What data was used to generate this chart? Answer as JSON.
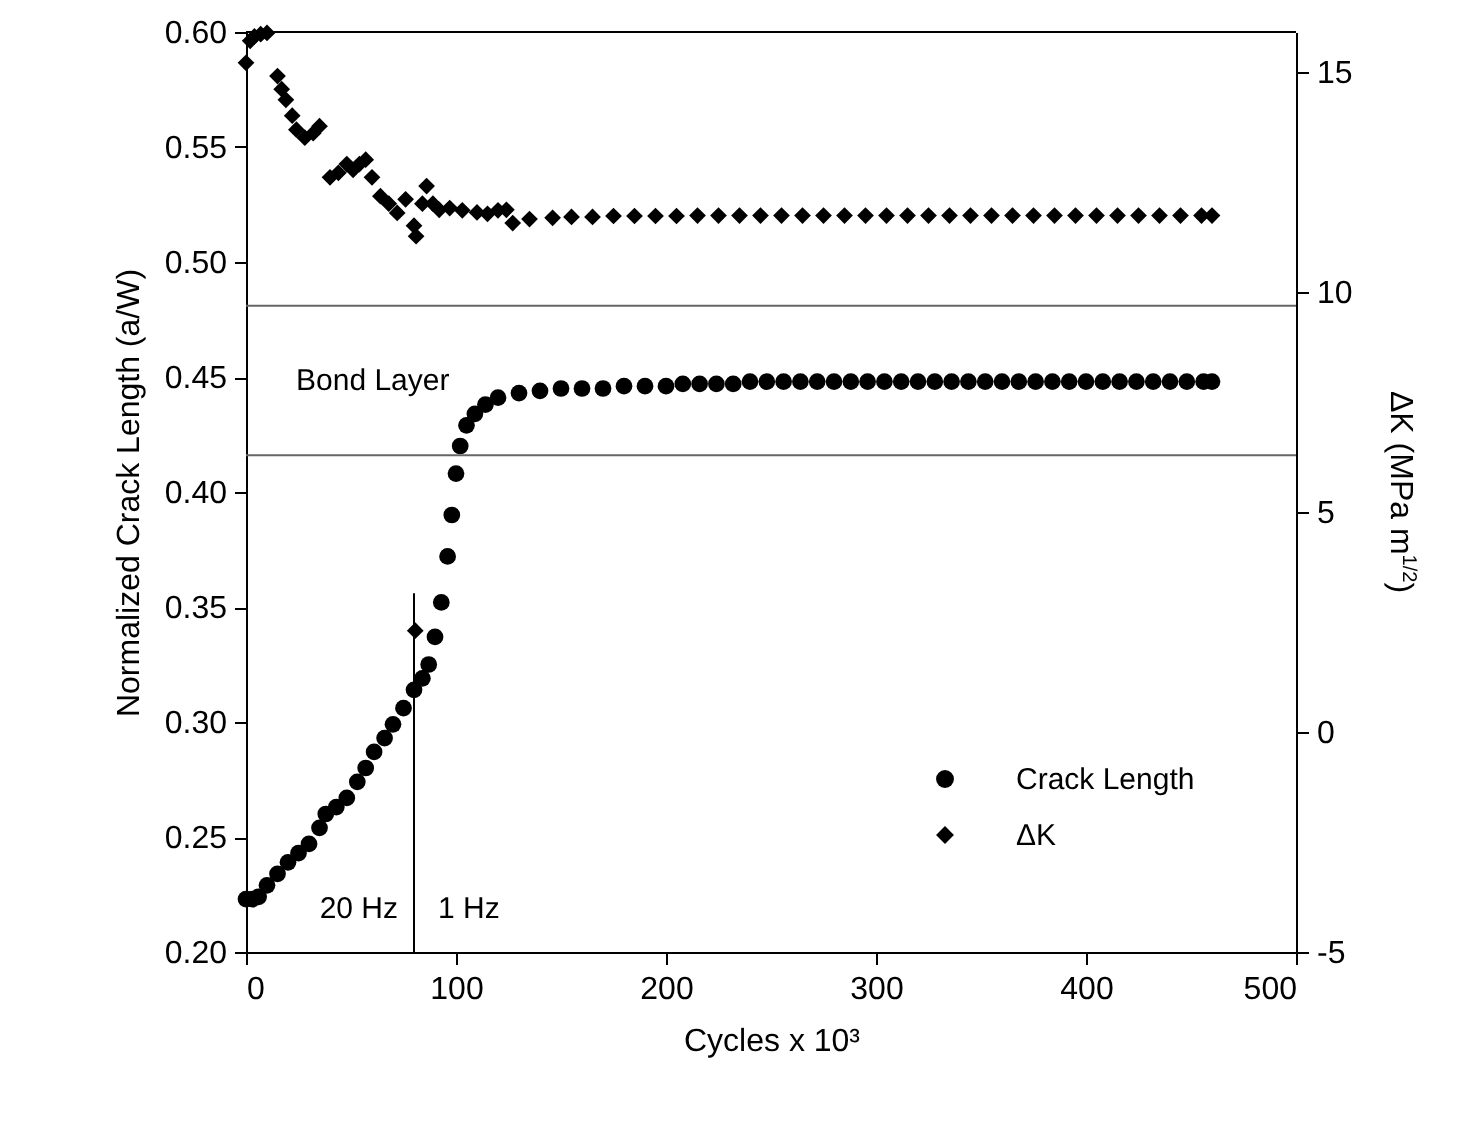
{
  "chart_data": {
    "type": "scatter",
    "xlabel": "Cycles x 10³",
    "ylabel": "Normalized Crack Length (a/W)",
    "y2label": "ΔK (MPa m$^{1/2}$)",
    "xlim": [
      0,
      500
    ],
    "xticks": [
      0,
      100,
      200,
      300,
      400,
      500
    ],
    "ylim": [
      0.2,
      0.6
    ],
    "yticks": [
      {
        "value": 0.2,
        "label": "0.20"
      },
      0.25,
      {
        "value": 0.3,
        "label": "0.30"
      },
      0.35,
      {
        "value": 0.4,
        "label": "0.40"
      },
      0.45,
      {
        "value": 0.5,
        "label": "0.50"
      },
      0.55,
      {
        "value": 0.6,
        "label": "0.60"
      }
    ],
    "y2lim": [
      -5,
      15.9
    ],
    "y2ticks": [
      -5,
      0,
      5,
      10,
      15
    ],
    "legend": "bottom right",
    "series": [
      {
        "name": "Crack Length",
        "color": "#000000",
        "marker": "circle",
        "x": [
          0,
          3,
          6,
          10,
          15,
          20,
          25,
          30,
          35,
          38,
          43,
          48,
          53,
          57,
          61,
          66,
          70,
          75,
          80,
          84,
          87,
          90,
          93,
          96,
          98,
          100,
          102,
          105,
          109,
          114,
          120,
          130,
          140,
          150,
          160,
          170,
          180,
          190,
          200,
          208,
          216,
          224,
          232,
          240,
          248,
          256,
          264,
          272,
          280,
          288,
          296,
          304,
          312,
          320,
          328,
          336,
          344,
          352,
          360,
          368,
          376,
          384,
          392,
          400,
          408,
          416,
          424,
          432,
          440,
          448,
          456,
          460
        ],
        "values": [
          0.223,
          0.223,
          0.224,
          0.229,
          0.234,
          0.239,
          0.243,
          0.247,
          0.254,
          0.26,
          0.263,
          0.267,
          0.274,
          0.28,
          0.287,
          0.293,
          0.299,
          0.306,
          0.314,
          0.319,
          0.325,
          0.337,
          0.352,
          0.372,
          0.39,
          0.408,
          0.42,
          0.429,
          0.434,
          0.438,
          0.441,
          0.443,
          0.444,
          0.445,
          0.445,
          0.445,
          0.446,
          0.446,
          0.446,
          0.447,
          0.447,
          0.447,
          0.447,
          0.448,
          0.448,
          0.448,
          0.448,
          0.448,
          0.448,
          0.448,
          0.448,
          0.448,
          0.448,
          0.448,
          0.448,
          0.448,
          0.448,
          0.448,
          0.448,
          0.448,
          0.448,
          0.448,
          0.448,
          0.448,
          0.448,
          0.448,
          0.448,
          0.448,
          0.448,
          0.448,
          0.448,
          0.448
        ]
      },
      {
        "name": "ΔK",
        "color": "#000000",
        "marker": "diamond",
        "axis": "y2",
        "x": [
          0,
          2,
          4,
          7,
          10,
          15,
          17,
          19,
          22,
          24,
          28,
          32,
          35,
          40,
          44,
          48,
          51,
          54,
          57,
          60,
          64,
          68,
          72,
          76,
          80,
          80.6,
          81,
          84,
          86,
          89,
          92,
          97,
          103,
          110,
          115,
          120,
          124,
          127,
          135,
          146,
          155,
          165,
          175,
          185,
          195,
          205,
          215,
          225,
          235,
          245,
          255,
          265,
          275,
          285,
          295,
          305,
          315,
          325,
          335,
          345,
          355,
          365,
          375,
          385,
          395,
          405,
          415,
          425,
          435,
          445,
          455,
          460
        ],
        "values": [
          15.2,
          15.7,
          15.8,
          15.85,
          15.88,
          14.9,
          14.6,
          14.36,
          14.0,
          13.68,
          13.5,
          13.6,
          13.76,
          12.6,
          12.7,
          12.9,
          12.77,
          12.9,
          13.0,
          12.6,
          12.17,
          12.0,
          11.79,
          12.1,
          11.5,
          2.3,
          11.26,
          12.0,
          12.4,
          12.0,
          11.86,
          11.9,
          11.85,
          11.8,
          11.77,
          11.85,
          11.86,
          11.56,
          11.65,
          11.68,
          11.7,
          11.7,
          11.72,
          11.72,
          11.72,
          11.72,
          11.73,
          11.73,
          11.73,
          11.73,
          11.73,
          11.73,
          11.73,
          11.73,
          11.73,
          11.73,
          11.73,
          11.73,
          11.73,
          11.73,
          11.73,
          11.73,
          11.73,
          11.73,
          11.73,
          11.73,
          11.73,
          11.73,
          11.73,
          11.73,
          11.73,
          11.73
        ]
      }
    ],
    "ref_lines": [
      {
        "axis": "y",
        "value": 0.481,
        "color": "#666666"
      },
      {
        "axis": "y",
        "value": 0.416,
        "color": "#666666"
      },
      {
        "axis": "x",
        "value": 80,
        "color": "#000000"
      }
    ],
    "annotations": [
      "Bond Layer",
      "20 Hz",
      "1 Hz"
    ]
  }
}
